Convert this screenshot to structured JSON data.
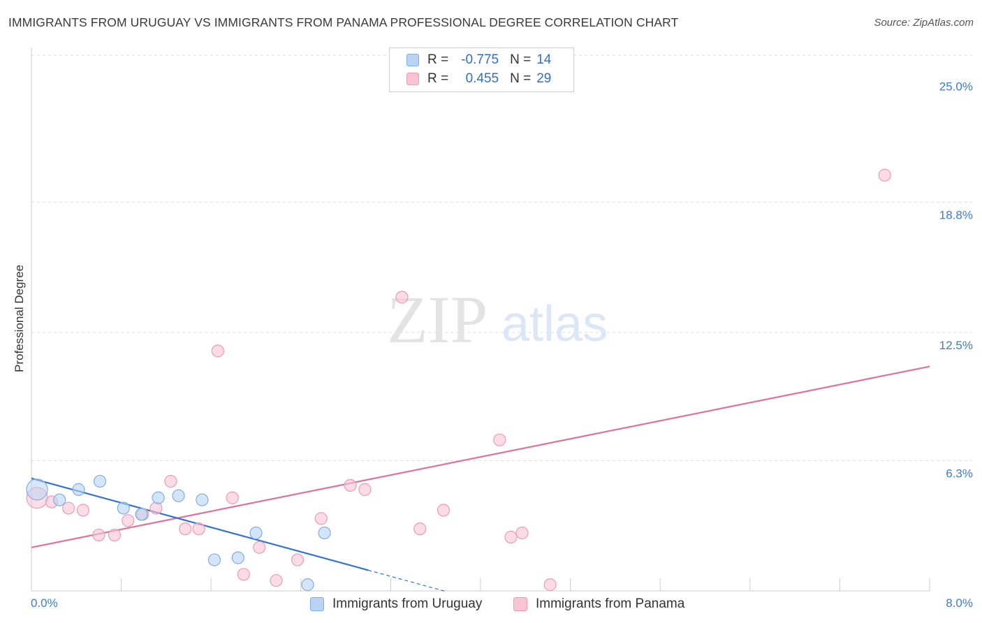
{
  "title": "IMMIGRANTS FROM URUGUAY VS IMMIGRANTS FROM PANAMA PROFESSIONAL DEGREE CORRELATION CHART",
  "source": "Source: ZipAtlas.com",
  "watermark": {
    "zip": "ZIP",
    "atlas": "atlas"
  },
  "legend": {
    "uruguay": {
      "r_label": "R =",
      "r_value": "-0.775",
      "n_label": "N =",
      "n_value": "14"
    },
    "panama": {
      "r_label": "R =",
      "r_value": "0.455",
      "n_label": "N =",
      "n_value": "29"
    }
  },
  "colors": {
    "uruguay_fill": "#b9d3f3",
    "uruguay_stroke": "#7eaee6",
    "uruguay_line": "#2f72d1",
    "panama_fill": "#f8c3d3",
    "panama_stroke": "#ee9bb5",
    "panama_line": "#e0719a",
    "tick_label": "#3d7bd0",
    "grid": "#dcdcdc"
  },
  "chart_data": {
    "type": "scatter",
    "ylabel": "Professional Degree",
    "xlabel": "",
    "xlim": [
      0,
      8
    ],
    "ylim": [
      0,
      25.9
    ],
    "x_tick_labels": [
      {
        "value": 0,
        "label": "0.0%"
      },
      {
        "value": 8,
        "label": "8.0%"
      }
    ],
    "y_tick_labels": [
      {
        "value": 6.3,
        "label": "6.3%"
      },
      {
        "value": 12.5,
        "label": "12.5%"
      },
      {
        "value": 18.8,
        "label": "18.8%"
      },
      {
        "value": 25.0,
        "label": "25.0%"
      }
    ],
    "grid": "horizontal dashed",
    "series": [
      {
        "name": "Immigrants from Uruguay",
        "points": [
          {
            "x": 0.05,
            "y": 4.9,
            "size": "large"
          },
          {
            "x": 0.25,
            "y": 4.4
          },
          {
            "x": 0.42,
            "y": 4.9
          },
          {
            "x": 0.61,
            "y": 5.3
          },
          {
            "x": 0.82,
            "y": 4.0
          },
          {
            "x": 0.98,
            "y": 3.7
          },
          {
            "x": 1.13,
            "y": 4.5
          },
          {
            "x": 1.31,
            "y": 4.6
          },
          {
            "x": 1.52,
            "y": 4.4
          },
          {
            "x": 1.63,
            "y": 1.5
          },
          {
            "x": 1.84,
            "y": 1.6
          },
          {
            "x": 2.0,
            "y": 2.8
          },
          {
            "x": 2.46,
            "y": 0.3
          },
          {
            "x": 2.61,
            "y": 2.8
          }
        ],
        "trend": {
          "x": [
            0.0,
            3.0
          ],
          "y": [
            5.44,
            1.0
          ],
          "dashed_x": [
            3.0,
            3.7
          ],
          "dashed_y": [
            1.0,
            -0.04
          ]
        }
      },
      {
        "name": "Immigrants from Panama",
        "points": [
          {
            "x": 0.05,
            "y": 4.5,
            "size": "large"
          },
          {
            "x": 0.18,
            "y": 4.3
          },
          {
            "x": 0.33,
            "y": 4.0
          },
          {
            "x": 0.46,
            "y": 3.9
          },
          {
            "x": 0.6,
            "y": 2.7
          },
          {
            "x": 0.74,
            "y": 2.7
          },
          {
            "x": 0.86,
            "y": 3.4
          },
          {
            "x": 0.99,
            "y": 3.7
          },
          {
            "x": 1.11,
            "y": 4.0
          },
          {
            "x": 1.24,
            "y": 5.3
          },
          {
            "x": 1.37,
            "y": 3.0
          },
          {
            "x": 1.49,
            "y": 3.0
          },
          {
            "x": 1.66,
            "y": 11.6
          },
          {
            "x": 1.79,
            "y": 4.5
          },
          {
            "x": 1.89,
            "y": 0.8
          },
          {
            "x": 2.03,
            "y": 2.1
          },
          {
            "x": 2.18,
            "y": 0.5
          },
          {
            "x": 2.37,
            "y": 1.5
          },
          {
            "x": 2.58,
            "y": 3.5
          },
          {
            "x": 2.84,
            "y": 5.1
          },
          {
            "x": 2.97,
            "y": 4.9
          },
          {
            "x": 3.3,
            "y": 14.2
          },
          {
            "x": 3.46,
            "y": 3.0
          },
          {
            "x": 3.67,
            "y": 3.9
          },
          {
            "x": 4.17,
            "y": 7.3
          },
          {
            "x": 4.27,
            "y": 2.6
          },
          {
            "x": 4.37,
            "y": 2.8
          },
          {
            "x": 4.62,
            "y": 0.3
          },
          {
            "x": 7.6,
            "y": 20.1
          }
        ],
        "trend": {
          "x": [
            0.0,
            8.0
          ],
          "y": [
            2.1,
            10.85
          ]
        }
      }
    ]
  }
}
